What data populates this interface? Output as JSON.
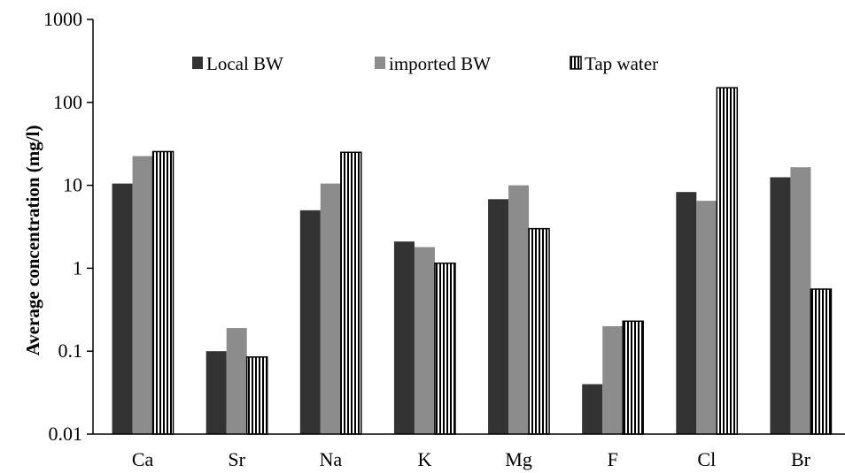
{
  "chart_data": {
    "type": "bar",
    "title": "",
    "xlabel": "",
    "ylabel": "Average concentration  (mg/l)",
    "yscale": "log",
    "ylim": [
      0.01,
      1000
    ],
    "yticks": [
      {
        "value": 1000,
        "label": "1000"
      },
      {
        "value": 100,
        "label": "100"
      },
      {
        "value": 10,
        "label": "10"
      },
      {
        "value": 1,
        "label": "1"
      },
      {
        "value": 0.1,
        "label": "0.1"
      },
      {
        "value": 0.01,
        "label": "0.01"
      }
    ],
    "grid": false,
    "legend_position": "top",
    "categories": [
      "Ca",
      "Sr",
      "Na",
      "K",
      "Mg",
      "F",
      "Cl",
      "Br"
    ],
    "series": [
      {
        "name": "Local BW",
        "style": "solid-dark",
        "color": "#333333",
        "values": [
          10.5,
          0.1,
          5.0,
          2.1,
          6.8,
          0.04,
          8.3,
          12.5
        ]
      },
      {
        "name": "imported BW",
        "style": "solid-gray",
        "color": "#8c8c8c",
        "values": [
          22.5,
          0.19,
          10.5,
          1.8,
          10.0,
          0.2,
          6.5,
          16.5
        ]
      },
      {
        "name": "Tap water",
        "style": "vertical-stripes",
        "color": "#000000",
        "values": [
          25.5,
          0.085,
          25.0,
          1.15,
          3.0,
          0.23,
          150,
          0.56
        ]
      }
    ]
  }
}
